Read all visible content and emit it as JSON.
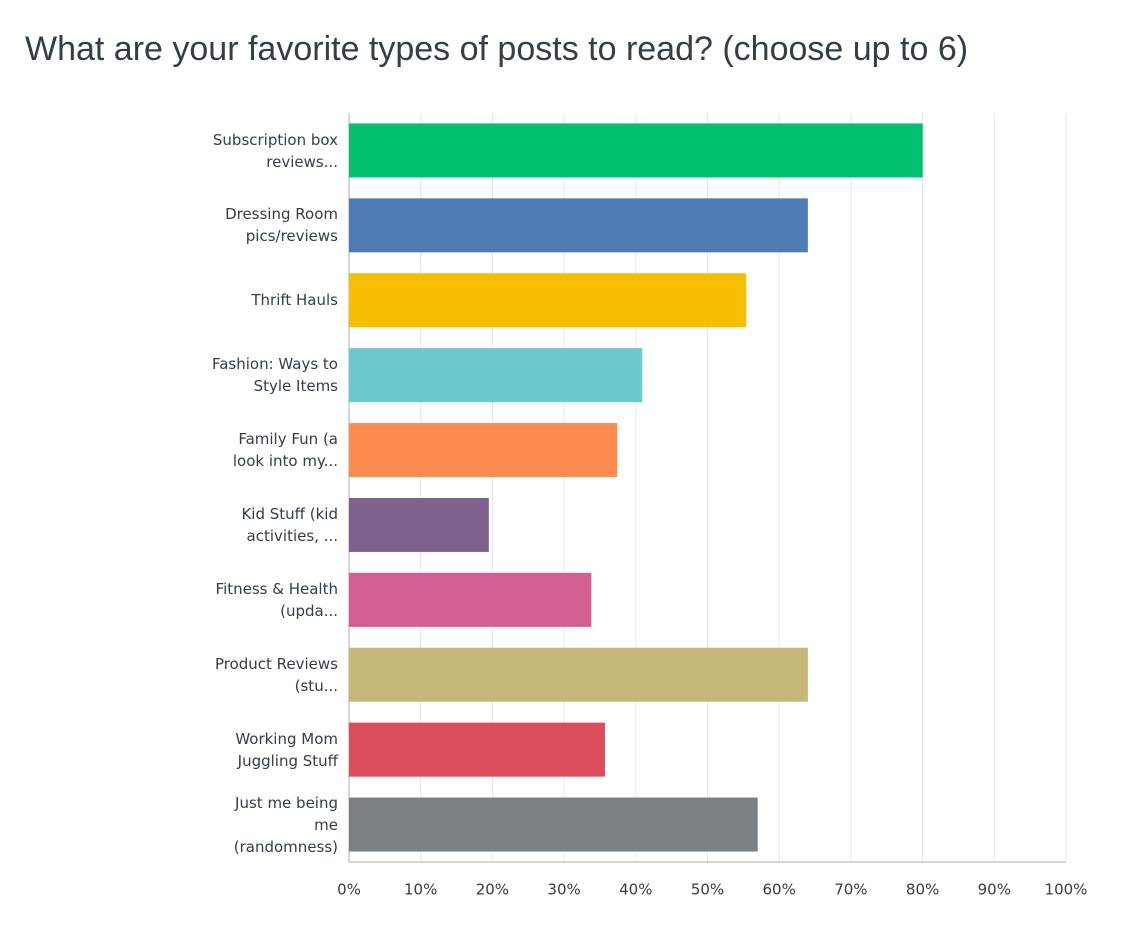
{
  "chart_data": {
    "type": "bar",
    "orientation": "horizontal",
    "title": "What are your favorite types of posts to read? (choose up to 6)",
    "categories": [
      "Subscription box reviews...",
      "Dressing Room pics/reviews",
      "Thrift Hauls",
      "Fashion: Ways to Style Items",
      "Family Fun (a look into my...",
      "Kid Stuff (kid activities, ...",
      "Fitness & Health (upda...",
      "Product Reviews (stu...",
      "Working Mom Juggling Stuff",
      "Just me being me (randomness)"
    ],
    "values": [
      80,
      64,
      55.4,
      40.9,
      37.4,
      19.5,
      33.8,
      64,
      35.7,
      57
    ],
    "colors": [
      "#00bf6f",
      "#507cb6",
      "#f6be00",
      "#6bc8cd",
      "#ff8b4f",
      "#7f628b",
      "#d25f90",
      "#c7b879",
      "#dc4d5c",
      "#7b8085"
    ],
    "xlim": [
      0,
      100
    ],
    "xticks": [
      {
        "value": 0,
        "label": "0%"
      },
      {
        "value": 10,
        "label": "10%"
      },
      {
        "value": 20,
        "label": "20%"
      },
      {
        "value": 30,
        "label": "30%"
      },
      {
        "value": 40,
        "label": "40%"
      },
      {
        "value": 50,
        "label": "50%"
      },
      {
        "value": 60,
        "label": "60%"
      },
      {
        "value": 70,
        "label": "70%"
      },
      {
        "value": 80,
        "label": "80%"
      },
      {
        "value": 90,
        "label": "90%"
      },
      {
        "value": 100,
        "label": "100%"
      }
    ],
    "grid": true
  }
}
